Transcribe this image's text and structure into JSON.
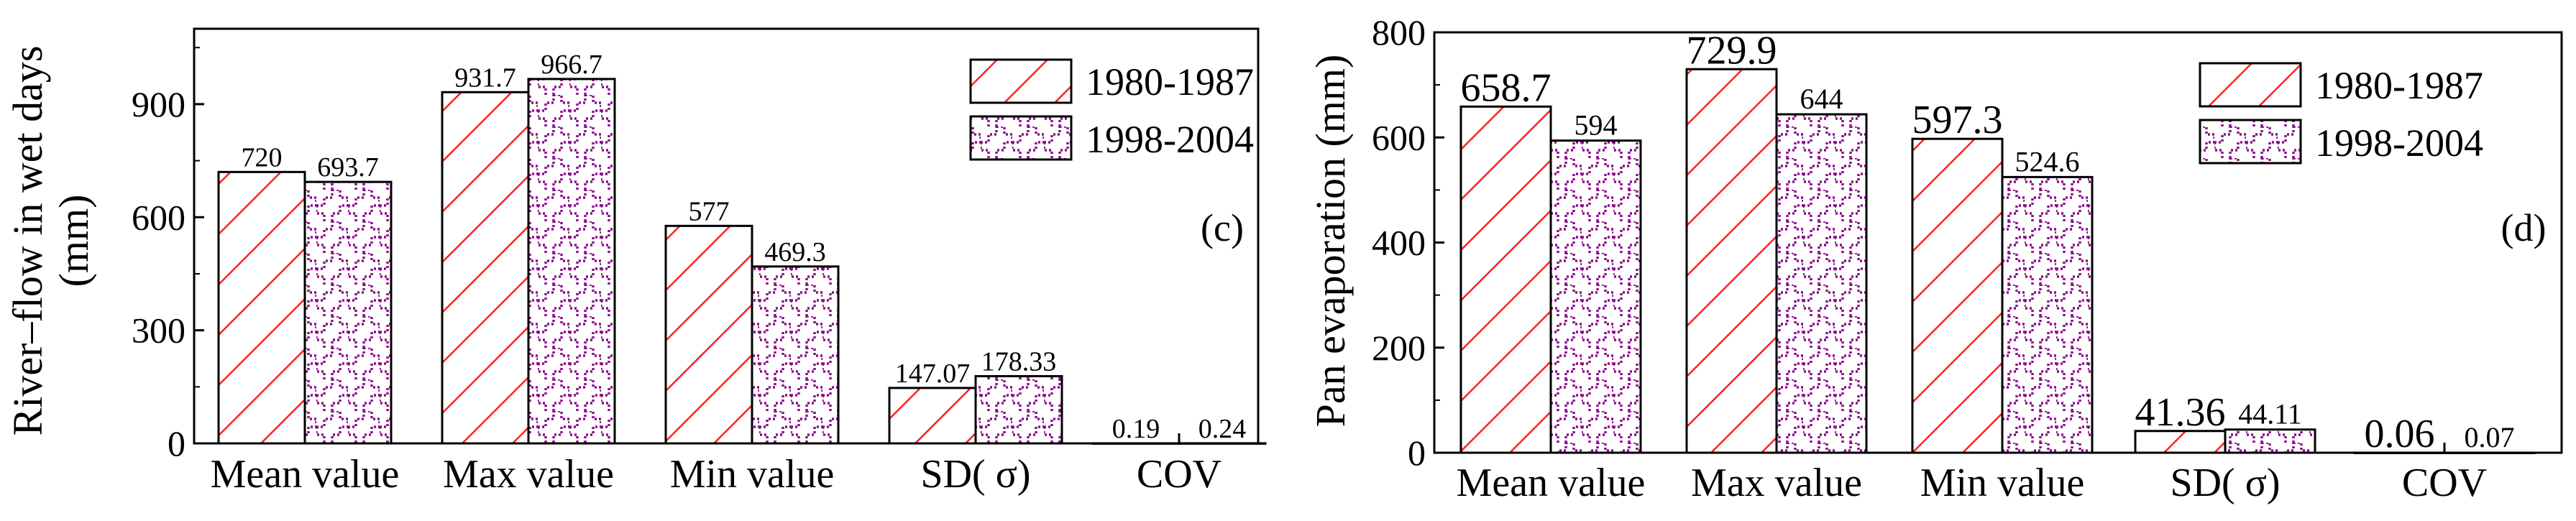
{
  "chart_data": [
    {
      "type": "bar",
      "panel_label": "(c)",
      "ylabel_line1": "River–flow in wet days",
      "ylabel_line2": "(mm)",
      "ylim": [
        0,
        1100
      ],
      "yticks": [
        0,
        300,
        600,
        900
      ],
      "ytick_labels": [
        "0",
        "300",
        "600",
        "900"
      ],
      "categories": [
        "Mean value",
        "Max value",
        "Min value",
        "SD( σ)",
        "COV"
      ],
      "series": [
        {
          "name": "1980-1987",
          "values": [
            720,
            931.7,
            577,
            147.07,
            0.19
          ],
          "labels": [
            "720",
            "931.7",
            "577",
            "147.07",
            "0.19"
          ]
        },
        {
          "name": "1998-2004",
          "values": [
            693.7,
            966.7,
            469.3,
            178.33,
            0.24
          ],
          "labels": [
            "693.7",
            "966.7",
            "469.3",
            "178.33",
            "0.24"
          ]
        }
      ],
      "legend_position": "top-right"
    },
    {
      "type": "bar",
      "panel_label": "(d)",
      "ylabel": "Pan evaporation (mm)",
      "ylim": [
        0,
        800
      ],
      "yticks": [
        0,
        200,
        400,
        600,
        800
      ],
      "ytick_labels": [
        "0",
        "200",
        "400",
        "600",
        "800"
      ],
      "categories": [
        "Mean value",
        "Max value",
        "Min value",
        "SD( σ)",
        "COV"
      ],
      "series": [
        {
          "name": "1980-1987",
          "values": [
            658.7,
            729.9,
            597.3,
            41.36,
            0.06
          ],
          "labels": [
            "658.7",
            "729.9",
            "597.3",
            "41.36",
            "0.06"
          ]
        },
        {
          "name": "1998-2004",
          "values": [
            594,
            644,
            524.6,
            44.11,
            0.07
          ],
          "labels": [
            "594",
            "644",
            "524.6",
            "44.11",
            "0.07"
          ]
        }
      ],
      "legend_position": "top-right"
    }
  ],
  "colors": {
    "hatch_1980": "#ff2020",
    "hatch_1998": "#8b0a8b",
    "axis": "#000000"
  }
}
